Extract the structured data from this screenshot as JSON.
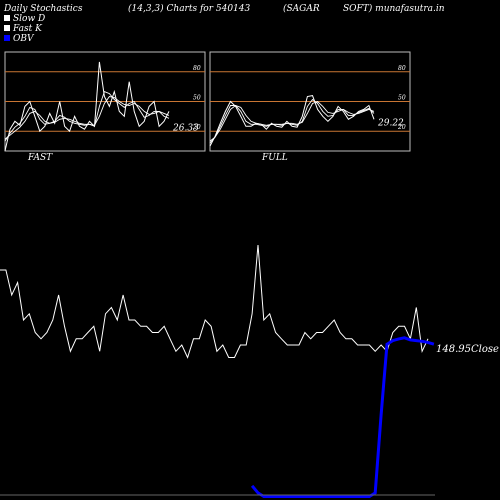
{
  "header": {
    "title": "Daily Stochastics",
    "params": "(14,3,3) Charts for 540143",
    "company": "(SAGAR",
    "site": "SOFT) munafasutra.in"
  },
  "legend": [
    {
      "label": "Slow  D",
      "color": "#ffffff"
    },
    {
      "label": "Fast K",
      "color": "#ffffff"
    },
    {
      "label": "OBV",
      "color": "#0000ff"
    }
  ],
  "colors": {
    "background": "#000000",
    "panel_border": "#bbbbbb",
    "level_line": "#c87533",
    "line": "#ffffff",
    "obv": "#0000ff"
  },
  "chart_data": [
    {
      "type": "line",
      "panel": "FAST",
      "ylim": [
        0,
        100
      ],
      "levels": [
        80,
        50,
        20
      ],
      "level_labels": [
        "80",
        "50",
        "20"
      ],
      "last_value_label": "26.33",
      "series": [
        {
          "values": [
            0,
            22,
            30,
            26,
            45,
            50,
            35,
            20,
            25,
            38,
            28,
            50,
            25,
            20,
            35,
            25,
            22,
            30,
            25,
            90,
            55,
            45,
            60,
            40,
            35,
            70,
            40,
            25,
            30,
            45,
            50,
            25,
            30,
            40
          ]
        },
        {
          "values": [
            10,
            18,
            24,
            28,
            35,
            44,
            42,
            32,
            27,
            28,
            30,
            36,
            34,
            30,
            28,
            27,
            26,
            27,
            25,
            45,
            60,
            58,
            52,
            48,
            44,
            48,
            50,
            42,
            34,
            36,
            40,
            40,
            35,
            33
          ]
        },
        {
          "values": [
            12,
            16,
            20,
            24,
            30,
            38,
            40,
            36,
            30,
            28,
            29,
            32,
            33,
            32,
            30,
            28,
            27,
            27,
            26,
            35,
            48,
            55,
            54,
            50,
            47,
            46,
            48,
            45,
            40,
            37,
            38,
            40,
            38,
            36
          ]
        }
      ]
    },
    {
      "type": "line",
      "panel": "FULL",
      "ylim": [
        0,
        100
      ],
      "levels": [
        80,
        50,
        20
      ],
      "level_labels": [
        "80",
        "50",
        "20"
      ],
      "last_value_label": "29.22",
      "series": [
        {
          "values": [
            5,
            15,
            28,
            40,
            50,
            45,
            35,
            25,
            25,
            28,
            27,
            22,
            28,
            25,
            24,
            30,
            25,
            24,
            35,
            55,
            56,
            42,
            35,
            30,
            35,
            45,
            40,
            32,
            35,
            40,
            42,
            46,
            32
          ]
        },
        {
          "values": [
            8,
            14,
            25,
            36,
            46,
            46,
            40,
            30,
            27,
            27,
            26,
            25,
            27,
            27,
            26,
            28,
            27,
            26,
            30,
            45,
            52,
            48,
            40,
            35,
            36,
            42,
            42,
            36,
            36,
            39,
            41,
            43,
            38
          ]
        },
        {
          "values": [
            10,
            14,
            22,
            32,
            42,
            46,
            44,
            36,
            30,
            28,
            27,
            26,
            27,
            27,
            27,
            28,
            28,
            27,
            29,
            38,
            48,
            50,
            45,
            39,
            38,
            40,
            42,
            39,
            37,
            38,
            40,
            42,
            40
          ]
        }
      ]
    },
    {
      "type": "line",
      "panel": "price",
      "close_label": "148.95Close",
      "series": [
        {
          "values": [
            160,
            160,
            156,
            158,
            152,
            153,
            150,
            149,
            150,
            152,
            156,
            151,
            147,
            149,
            149,
            150,
            151,
            147,
            153,
            154,
            152,
            156,
            152,
            152,
            151,
            151,
            150,
            150,
            151,
            149,
            147,
            148,
            146,
            149,
            149,
            152,
            151,
            147,
            148,
            146,
            146,
            148,
            148,
            153,
            164,
            152,
            153,
            150,
            149,
            148,
            148,
            148,
            150,
            149,
            150,
            150,
            151,
            152,
            150,
            149,
            149,
            148,
            148,
            148,
            147,
            148,
            147,
            150,
            151,
            151,
            149,
            154,
            147,
            149
          ]
        },
        {
          "values": [
            null,
            null,
            null,
            null,
            null,
            null,
            null,
            null,
            null,
            null,
            null,
            null,
            null,
            null,
            null,
            null,
            null,
            null,
            null,
            null,
            null,
            null,
            null,
            null,
            null,
            null,
            null,
            null,
            null,
            null,
            null,
            null,
            null,
            null,
            null,
            null,
            null,
            null,
            null,
            null,
            null,
            null,
            null,
            -400,
            -420,
            -430,
            -430,
            -430,
            -430,
            -430,
            -430,
            -430,
            -430,
            -430,
            -430,
            -430,
            -430,
            -430,
            -430,
            -430,
            -430,
            -430,
            -430,
            -430,
            -420,
            -200,
            0,
            10,
            15,
            18,
            12,
            10,
            8,
            5,
            0
          ]
        }
      ]
    }
  ],
  "panels": {
    "fast_label": "FAST",
    "full_label": "FULL"
  }
}
